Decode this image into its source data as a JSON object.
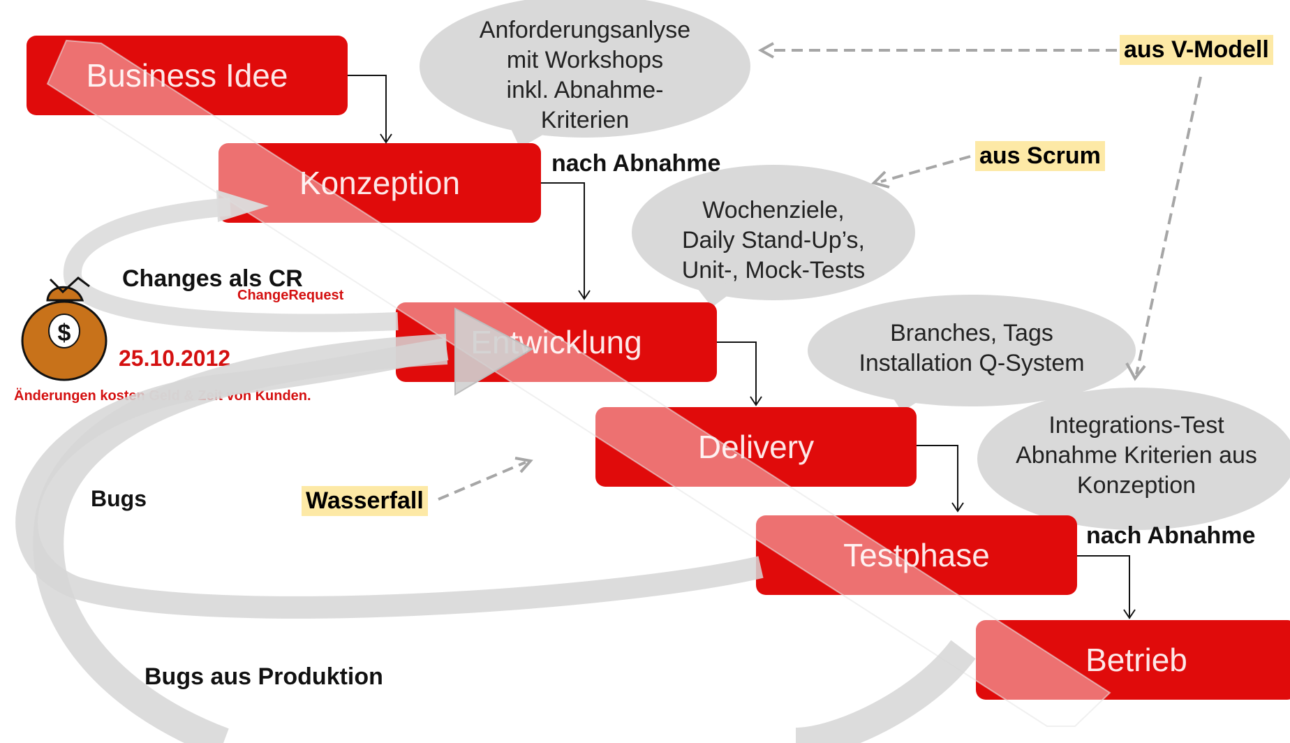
{
  "stages": {
    "business_idee": "Business Idee",
    "konzeption": "Konzeption",
    "entwicklung": "Entwicklung",
    "delivery": "Delivery",
    "testphase": "Testphase",
    "betrieb": "Betrieb"
  },
  "bubbles": {
    "anforderung": [
      "Anforderungsanlyse",
      "mit Workshops",
      "inkl. Abnahme-",
      "Kriterien"
    ],
    "wochenziele": [
      "Wochenziele,",
      "Daily Stand-Up’s,",
      "Unit-, Mock-Tests"
    ],
    "branches": [
      "Branches, Tags",
      "Installation Q-System"
    ],
    "integration": [
      "Integrations-Test",
      "Abnahme Kriterien aus",
      "Konzeption"
    ]
  },
  "labels": {
    "nach_abnahme_1": "nach Abnahme",
    "nach_abnahme_2": "nach Abnahme",
    "changes": "Changes als CR",
    "change_request": "ChangeRequest",
    "date": "25.10.2012",
    "cost_note": "Änderungen kosten Geld & Zeit von Kunden.",
    "bugs": "Bugs",
    "bugs_prod": "Bugs aus Produktion"
  },
  "tags": {
    "v_modell": "aus V-Modell",
    "scrum": "aus Scrum",
    "wasserfall": "Wasserfall"
  },
  "colors": {
    "stage_red": "#e00b0b",
    "bubble_gray": "#d9d9d9",
    "tag_yellow": "#fde9a6",
    "note_red": "#d41010"
  }
}
